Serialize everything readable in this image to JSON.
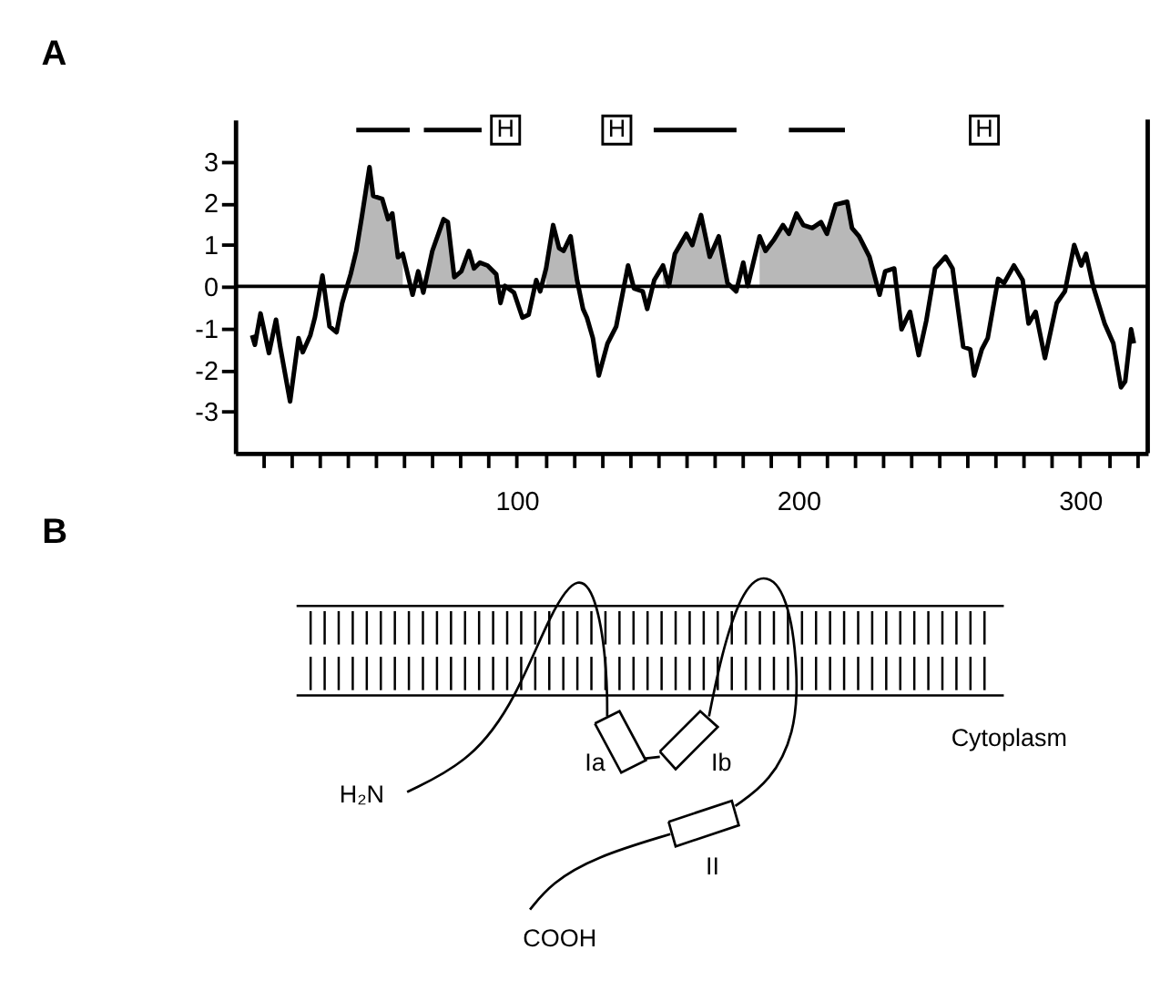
{
  "chart_data": [
    {
      "type": "line",
      "title": "A",
      "xlim": [
        0,
        324
      ],
      "ylim": [
        -4,
        4
      ],
      "xticks": [
        {
          "value": 10,
          "label": null
        },
        {
          "value": 20,
          "label": null
        },
        {
          "value": 30,
          "label": null
        },
        {
          "value": 40,
          "label": null
        },
        {
          "value": 50,
          "label": null
        },
        {
          "value": 60,
          "label": null
        },
        {
          "value": 70,
          "label": null
        },
        {
          "value": 80,
          "label": null
        },
        {
          "value": 90,
          "label": null
        },
        100,
        {
          "value": 110,
          "label": null
        },
        {
          "value": 120,
          "label": null
        },
        {
          "value": 130,
          "label": null
        },
        {
          "value": 140,
          "label": null
        },
        {
          "value": 150,
          "label": null
        },
        {
          "value": 160,
          "label": null
        },
        {
          "value": 170,
          "label": null
        },
        {
          "value": 180,
          "label": null
        },
        {
          "value": 190,
          "label": null
        },
        200,
        {
          "value": 210,
          "label": null
        },
        {
          "value": 220,
          "label": null
        },
        {
          "value": 230,
          "label": null
        },
        {
          "value": 240,
          "label": null
        },
        {
          "value": 250,
          "label": null
        },
        {
          "value": 260,
          "label": null
        },
        {
          "value": 270,
          "label": null
        },
        {
          "value": 280,
          "label": null
        },
        {
          "value": 290,
          "label": null
        },
        300,
        {
          "value": 310,
          "label": null
        },
        {
          "value": 320,
          "label": null
        }
      ],
      "yticks": [
        -3,
        -2,
        -1,
        0,
        1,
        2,
        3
      ],
      "grid": false,
      "marker": "none",
      "line_style": "solid",
      "ref_lines": [
        {
          "axis": "y",
          "value": 0,
          "color": "#000000"
        }
      ],
      "annotations": [
        {
          "text": "H",
          "x": 96,
          "y": 3.75
        },
        {
          "text": "H",
          "x": 135.5,
          "y": 3.75
        },
        {
          "text": "H",
          "x": 266,
          "y": 3.75
        }
      ],
      "series": [
        {
          "type": "area",
          "color": "#b8b8b8",
          "x": [
            41,
            43,
            45,
            47.7,
            49,
            52.2,
            54.3,
            55.8,
            57.8,
            59.5,
            63,
            65,
            66.8,
            70,
            74,
            75.5,
            77.8,
            80.3,
            83,
            84.8,
            86.9,
            89.6,
            92.7,
            94.2,
            106.9,
            110.4,
            112.9,
            115,
            116.6,
            119.1,
            121.4,
            148.8,
            151.9,
            154,
            156.1,
            160.2,
            162.3,
            165.4,
            168.5,
            171.7,
            174.8,
            182,
            186.2,
            188.3,
            191.4,
            194.5,
            196.6,
            199.3,
            201.7,
            204.9,
            208,
            210.1,
            213.2,
            217.3,
            219,
            221.5,
            225.2,
            228.8
          ],
          "values": [
            0.29,
            0.85,
            1.68,
            2.86,
            2.17,
            2.1,
            1.61,
            1.75,
            0.7,
            0.78,
            null,
            0.36,
            0.15,
            0.85,
            1.61,
            1.54,
            0.22,
            0.36,
            0.85,
            0.43,
            0.57,
            0.5,
            0.29,
            0.0,
            null,
            0.43,
            1.47,
            0.92,
            0.85,
            1.2,
            0.15,
            null,
            0.5,
            0.01,
            0.78,
            1.26,
            0.99,
            1.71,
            0.71,
            1.2,
            0.08,
            null,
            1.2,
            0.85,
            1.13,
            1.47,
            1.26,
            1.75,
            1.47,
            1.4,
            1.54,
            1.26,
            1.96,
            2.03,
            1.4,
            1.2,
            0.71,
            0.0
          ]
        },
        {
          "type": "line",
          "color": "#000000",
          "x": [
            6,
            7,
            9,
            12,
            14.5,
            16,
            19.5,
            22.5,
            24,
            26.7,
            28.3,
            31,
            33.5,
            36,
            38,
            41,
            43,
            45,
            47.7,
            49,
            52.2,
            54.3,
            55.8,
            57.8,
            59.5,
            63,
            65,
            66.8,
            70,
            74,
            75.5,
            77.8,
            80.3,
            83,
            84.8,
            86.9,
            89.6,
            92.7,
            94.2,
            95.8,
            99,
            102,
            104.2,
            106.9,
            108.3,
            110.4,
            112.9,
            115,
            116.6,
            119.1,
            121.4,
            123.5,
            124.9,
            127,
            129.1,
            132.2,
            135.3,
            139.5,
            141.6,
            144.7,
            146.3,
            148.8,
            151.9,
            154,
            156.1,
            160.2,
            162.3,
            165.4,
            168.5,
            171.7,
            174.8,
            177.9,
            180.4,
            182,
            186.2,
            188.3,
            191.4,
            194.5,
            196.6,
            199.3,
            201.7,
            204.9,
            208,
            210.1,
            213.2,
            217.3,
            219,
            221.5,
            225.2,
            228.8,
            230.8,
            234,
            236.6,
            239.6,
            242.7,
            245.4,
            248.5,
            252.2,
            254.7,
            258.5,
            261,
            262.4,
            265.1,
            267.2,
            270.9,
            273,
            276.5,
            279.6,
            281.7,
            284.2,
            287.5,
            291.7,
            294.6,
            297.9,
            300.4,
            302.1,
            304.6,
            308.7,
            311.8,
            314.5,
            316,
            318.1,
            319.1
          ],
          "values": [
            -1.17,
            -1.4,
            -0.65,
            -1.6,
            -0.8,
            -1.45,
            -2.76,
            -1.24,
            -1.58,
            -1.17,
            -0.75,
            0.26,
            -0.96,
            -1.1,
            -0.4,
            0.29,
            0.85,
            1.68,
            2.86,
            2.17,
            2.1,
            1.61,
            1.75,
            0.7,
            0.78,
            -0.2,
            0.36,
            -0.15,
            0.85,
            1.61,
            1.54,
            0.22,
            0.36,
            0.85,
            0.43,
            0.57,
            0.5,
            0.29,
            -0.4,
            0.01,
            -0.15,
            -0.75,
            -0.68,
            0.15,
            -0.12,
            0.43,
            1.47,
            0.92,
            0.85,
            1.2,
            0.15,
            -0.54,
            -0.75,
            -1.24,
            -2.14,
            -1.37,
            -0.96,
            0.5,
            -0.05,
            -0.12,
            -0.54,
            0.15,
            0.5,
            0.01,
            0.78,
            1.26,
            0.99,
            1.71,
            0.71,
            1.2,
            0.08,
            -0.12,
            0.57,
            0.01,
            1.2,
            0.85,
            1.13,
            1.47,
            1.26,
            1.75,
            1.47,
            1.4,
            1.54,
            1.26,
            1.96,
            2.03,
            1.4,
            1.2,
            0.71,
            -0.2,
            0.36,
            0.43,
            -1.03,
            -0.61,
            -1.65,
            -0.82,
            0.43,
            0.71,
            0.43,
            -1.45,
            -1.51,
            -2.14,
            -1.51,
            -1.24,
            0.18,
            0.08,
            0.5,
            0.15,
            -0.89,
            -0.61,
            -1.72,
            -0.4,
            -0.12,
            0.99,
            0.5,
            0.78,
            0.01,
            -0.89,
            -1.37,
            -2.42,
            -2.28,
            -1.03,
            -1.37
          ]
        },
        {
          "type": "line",
          "color": "#000000",
          "x": [
            43,
            62,
            64,
            67,
            87.5,
            88,
            148.6,
            178,
            180,
            196.6,
            216.5
          ],
          "values": [
            3.75,
            3.75,
            null,
            3.75,
            3.75,
            null,
            3.75,
            3.75,
            null,
            3.75,
            3.75
          ]
        }
      ]
    },
    {
      "type": "other",
      "title": "B",
      "annotations": [
        "Cytoplasm",
        "H₂N",
        "Ia",
        "Ib",
        "II",
        "COOH"
      ]
    }
  ]
}
